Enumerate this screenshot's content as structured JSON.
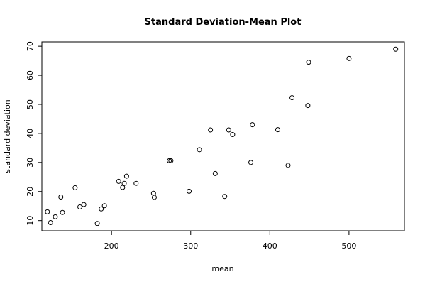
{
  "chart_data": {
    "type": "scatter",
    "title": "Standard Deviation-Mean Plot",
    "xlabel": "mean",
    "ylabel": "standard deviation",
    "xlim": [
      112,
      570
    ],
    "ylim": [
      6.5,
      71.5
    ],
    "xticks": [
      200,
      300,
      400,
      500
    ],
    "yticks": [
      10,
      20,
      30,
      40,
      50,
      60,
      70
    ],
    "grid": false,
    "series": [
      {
        "points": [
          [
            119,
            13.0
          ],
          [
            123,
            9.3
          ],
          [
            129,
            11.3
          ],
          [
            136,
            18.1
          ],
          [
            138,
            12.8
          ],
          [
            154,
            21.3
          ],
          [
            160,
            14.7
          ],
          [
            165,
            15.5
          ],
          [
            182,
            9.0
          ],
          [
            187,
            14.0
          ],
          [
            191,
            15.1
          ],
          [
            209,
            23.5
          ],
          [
            214,
            21.4
          ],
          [
            216,
            22.8
          ],
          [
            219,
            25.3
          ],
          [
            231,
            22.8
          ],
          [
            253,
            19.4
          ],
          [
            254,
            18.0
          ],
          [
            273,
            30.6
          ],
          [
            275,
            30.6
          ],
          [
            298,
            20.1
          ],
          [
            311,
            34.4
          ],
          [
            325,
            41.2
          ],
          [
            331,
            26.2
          ],
          [
            343,
            18.3
          ],
          [
            348,
            41.2
          ],
          [
            353,
            39.6
          ],
          [
            376,
            30.0
          ],
          [
            378,
            43.0
          ],
          [
            410,
            41.3
          ],
          [
            423,
            29.0
          ],
          [
            428,
            52.3
          ],
          [
            448,
            49.6
          ],
          [
            449,
            64.5
          ],
          [
            500,
            65.8
          ],
          [
            559,
            69.0
          ]
        ]
      }
    ]
  }
}
